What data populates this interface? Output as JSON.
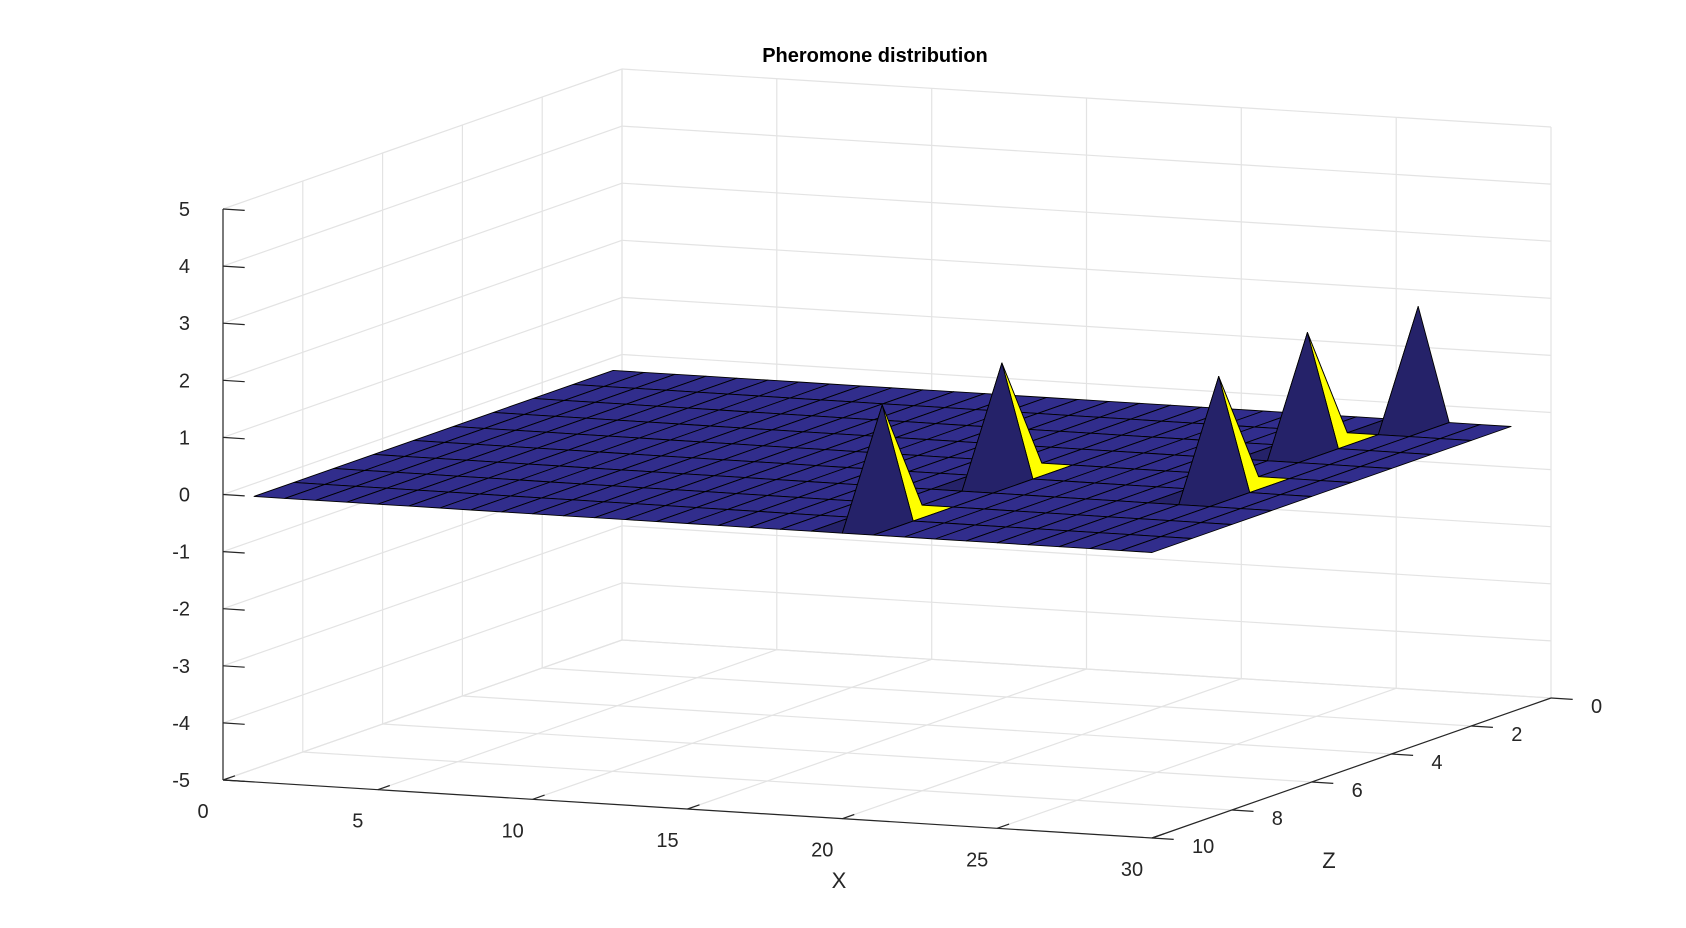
{
  "chart_data": {
    "type": "surface",
    "title": "Pheromone distribution",
    "xlabel": "X",
    "ylabel": "",
    "zlabel": "Z",
    "xlim": [
      0,
      30
    ],
    "depth_lim": [
      0,
      10
    ],
    "height_lim": [
      -5,
      5
    ],
    "x_ticks": [
      "0",
      "5",
      "10",
      "15",
      "20",
      "25",
      "30"
    ],
    "depth_ticks": [
      "0",
      "2",
      "4",
      "6",
      "8",
      "10"
    ],
    "height_ticks": [
      "-5",
      "-4",
      "-3",
      "-2",
      "-1",
      "0",
      "1",
      "2",
      "3",
      "4",
      "5"
    ],
    "grid": true,
    "surface": {
      "x_range": [
        1,
        30
      ],
      "depth_range": [
        1,
        10
      ],
      "base_value": 0,
      "color": "#312d8c",
      "edge_color": "#000000"
    },
    "peaks": [
      {
        "x": 20,
        "depth": 9,
        "value": 2
      },
      {
        "x": 20,
        "depth": 6,
        "value": 2
      },
      {
        "x": 27,
        "depth": 6,
        "value": 2
      },
      {
        "x": 26,
        "depth": 3,
        "value": 2
      },
      {
        "x": 27,
        "depth": 1,
        "value": 2
      }
    ],
    "peak_color": "#ffff00"
  }
}
